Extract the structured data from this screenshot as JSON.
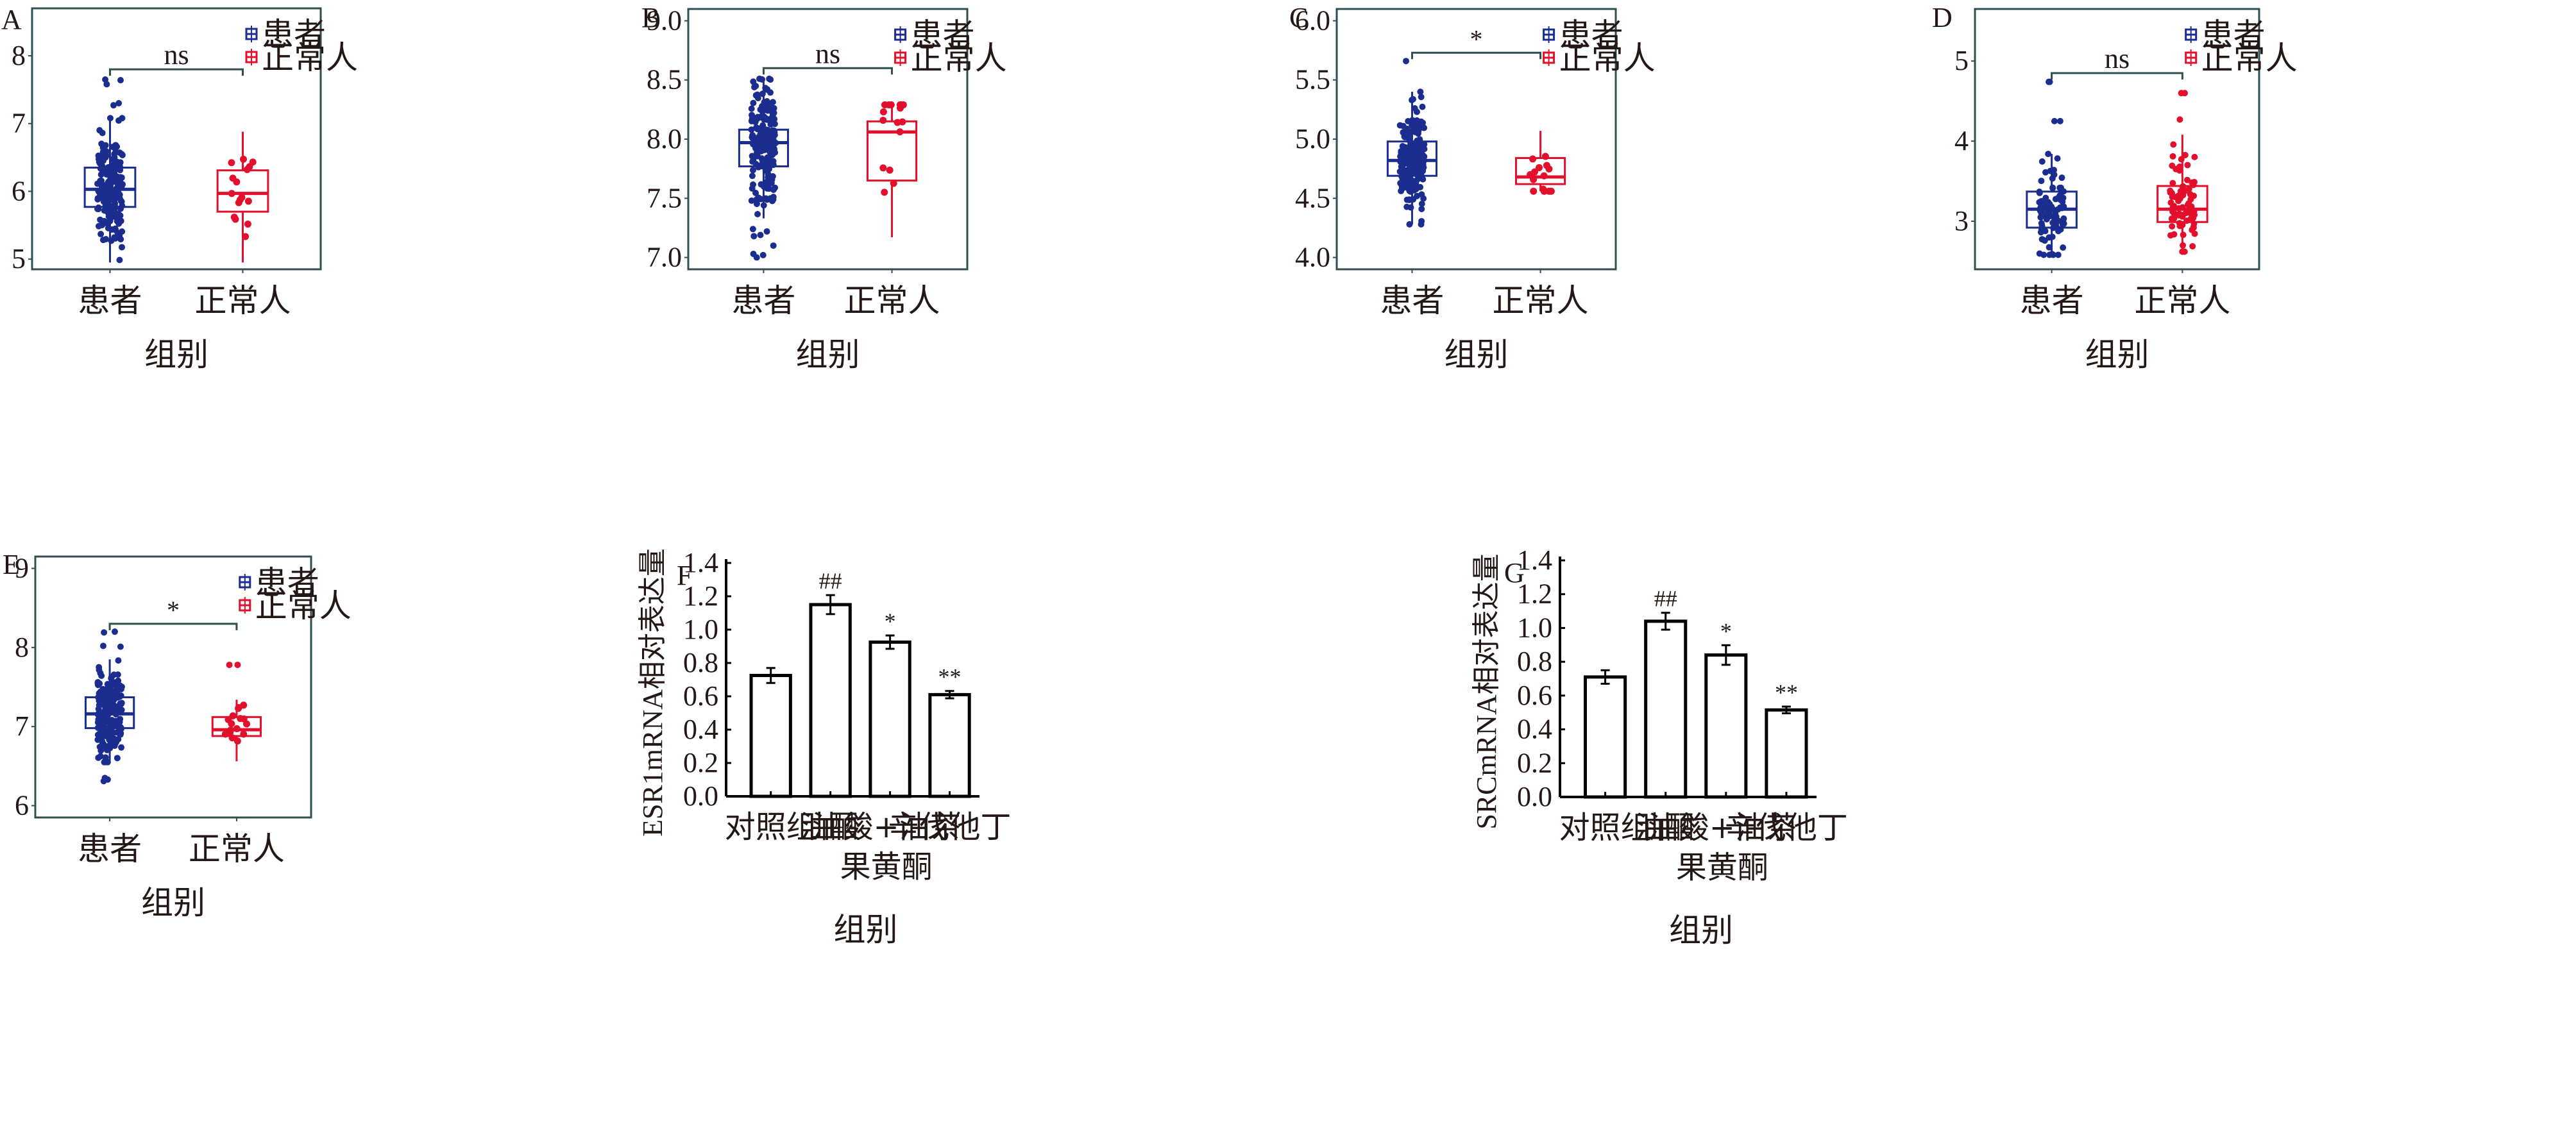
{
  "colors": {
    "patient": "#1b2d8f",
    "normal": "#e2102c",
    "frame": "#2f4f4f",
    "text": "#231815",
    "bar": "#000000"
  },
  "chart_data": [
    {
      "panel": "A",
      "type": "box",
      "xlabel": "组别",
      "ylabel": "",
      "categories": [
        "患者",
        "正常人"
      ],
      "legend": [
        "患者",
        "正常人"
      ],
      "legend_position": "top-right",
      "yticks": [
        5,
        6,
        7,
        8
      ],
      "ylim": [
        4.85,
        8.7
      ],
      "significance": "ns",
      "boxes": [
        {
          "q1": 5.77,
          "median": 6.03,
          "q3": 6.35,
          "whisker_low": 4.95,
          "whisker_high": 7.08,
          "n_points": 200,
          "outliers": [
            7.3,
            7.27,
            7.58,
            7.65,
            7.64
          ]
        },
        {
          "q1": 5.7,
          "median": 5.97,
          "q3": 6.31,
          "whisker_low": 4.95,
          "whisker_high": 6.88,
          "n_points": 16,
          "outliers": []
        }
      ],
      "bracket_y": 7.8
    },
    {
      "panel": "B",
      "type": "box",
      "xlabel": "组别",
      "ylabel": "",
      "categories": [
        "患者",
        "正常人"
      ],
      "legend": [
        "患者",
        "正常人"
      ],
      "legend_position": "top-right",
      "yticks": [
        7.0,
        7.5,
        8.0,
        8.5,
        9.0
      ],
      "ytick_labels": [
        "7.0",
        "7.5",
        "8.0",
        "8.5",
        "9.0"
      ],
      "ylim": [
        6.9,
        9.1
      ],
      "significance": "ns",
      "boxes": [
        {
          "q1": 7.77,
          "median": 7.97,
          "q3": 8.08,
          "whisker_low": 7.33,
          "whisker_high": 8.51,
          "n_points": 200,
          "outliers": [
            7.24,
            7.22,
            7.19,
            7.18,
            7.1,
            7.03,
            7.02,
            7.0
          ]
        },
        {
          "q1": 7.65,
          "median": 8.06,
          "q3": 8.15,
          "whisker_low": 7.17,
          "whisker_high": 8.29,
          "n_points": 16,
          "outliers": []
        }
      ],
      "bracket_y": 8.6
    },
    {
      "panel": "C",
      "type": "box",
      "xlabel": "组别",
      "ylabel": "",
      "categories": [
        "患者",
        "正常人"
      ],
      "legend": [
        "患者",
        "正常人"
      ],
      "legend_position": "top-right",
      "yticks": [
        4.0,
        4.5,
        5.0,
        5.5,
        6.0
      ],
      "ytick_labels": [
        "4.0",
        "4.5",
        "5.0",
        "5.5",
        "6.0"
      ],
      "ylim": [
        3.9,
        6.1
      ],
      "significance": "*",
      "boxes": [
        {
          "q1": 4.69,
          "median": 4.82,
          "q3": 4.98,
          "whisker_low": 4.28,
          "whisker_high": 5.4,
          "n_points": 200,
          "outliers": [
            5.66
          ]
        },
        {
          "q1": 4.62,
          "median": 4.68,
          "q3": 4.84,
          "whisker_low": 4.56,
          "whisker_high": 5.07,
          "n_points": 16,
          "outliers": []
        }
      ],
      "bracket_y": 5.73
    },
    {
      "panel": "D",
      "type": "box",
      "xlabel": "组别",
      "ylabel": "",
      "categories": [
        "患者",
        "正常人"
      ],
      "legend": [
        "患者",
        "正常人"
      ],
      "legend_position": "top-right",
      "yticks": [
        3,
        4,
        5
      ],
      "ylim": [
        2.4,
        5.65
      ],
      "significance": "ns",
      "boxes": [
        {
          "q1": 2.92,
          "median": 3.15,
          "q3": 3.37,
          "whisker_low": 2.58,
          "whisker_high": 3.84,
          "n_points": 90,
          "outliers": [
            4.25,
            4.25,
            4.74,
            4.74
          ]
        },
        {
          "q1": 2.99,
          "median": 3.15,
          "q3": 3.44,
          "whisker_low": 2.62,
          "whisker_high": 4.08,
          "n_points": 80,
          "outliers": [
            4.27,
            4.6,
            4.6
          ]
        }
      ],
      "bracket_y": 4.85
    },
    {
      "panel": "E",
      "type": "box",
      "xlabel": "组别",
      "ylabel": "",
      "categories": [
        "患者",
        "正常人"
      ],
      "legend": [
        "患者",
        "正常人"
      ],
      "legend_position": "top-right",
      "yticks": [
        6,
        7,
        8,
        9
      ],
      "ylim": [
        5.85,
        9.15
      ],
      "significance": "*",
      "boxes": [
        {
          "q1": 6.98,
          "median": 7.16,
          "q3": 7.37,
          "whisker_low": 6.55,
          "whisker_high": 7.85,
          "n_points": 200,
          "outliers": [
            8.01,
            8.02,
            8.19,
            8.2,
            6.35,
            6.33,
            6.31
          ]
        },
        {
          "q1": 6.88,
          "median": 6.96,
          "q3": 7.12,
          "whisker_low": 6.56,
          "whisker_high": 7.34,
          "n_points": 16,
          "outliers": [
            7.78,
            7.78
          ]
        }
      ],
      "bracket_y": 8.3
    },
    {
      "panel": "F",
      "type": "bar",
      "xlabel": "组别",
      "ylabel": "ESR1mRNA相对表达量",
      "categories": [
        [
          "对照组"
        ],
        [
          "油酸"
        ],
        [
          "油酸+油茶",
          "果黄酮"
        ],
        [
          "辛伐他丁"
        ]
      ],
      "values": [
        0.725,
        1.15,
        0.925,
        0.61
      ],
      "errors": [
        0.045,
        0.057,
        0.04,
        0.022
      ],
      "annotations": [
        "",
        "##",
        "*",
        "**"
      ],
      "yticks": [
        0.0,
        0.2,
        0.4,
        0.6,
        0.8,
        1.0,
        1.2,
        1.4
      ],
      "ytick_labels": [
        "0.0",
        "0.2",
        "0.4",
        "0.6",
        "0.8",
        "1.0",
        "1.2",
        "1.4"
      ],
      "ylim": [
        0,
        1.4
      ]
    },
    {
      "panel": "G",
      "type": "bar",
      "xlabel": "组别",
      "ylabel": "SRCmRNA相对表达量",
      "categories": [
        [
          "对照组"
        ],
        [
          "油酸"
        ],
        [
          "油酸+油茶",
          "果黄酮"
        ],
        [
          "辛伐他丁"
        ]
      ],
      "values": [
        0.71,
        1.04,
        0.84,
        0.515
      ],
      "errors": [
        0.04,
        0.05,
        0.058,
        0.02
      ],
      "annotations": [
        "",
        "##",
        "*",
        "**"
      ],
      "yticks": [
        0.0,
        0.2,
        0.4,
        0.6,
        0.8,
        1.0,
        1.2,
        1.4
      ],
      "ytick_labels": [
        "0.0",
        "0.2",
        "0.4",
        "0.6",
        "0.8",
        "1.0",
        "1.2",
        "1.4"
      ],
      "ylim": [
        0,
        1.4
      ]
    }
  ]
}
